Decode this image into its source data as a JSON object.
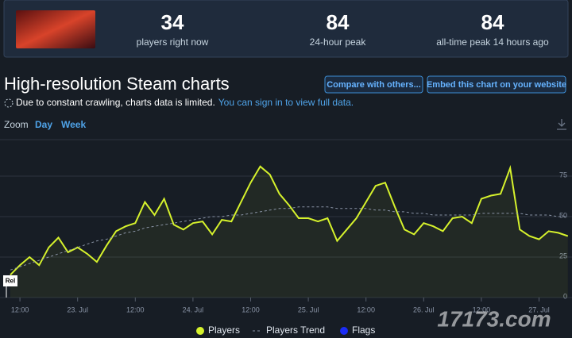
{
  "header": {
    "stats": [
      {
        "value": 34,
        "label": "players right now"
      },
      {
        "value": 84,
        "label": "24-hour peak"
      },
      {
        "value": 84,
        "label": "all-time peak 14 hours ago"
      }
    ]
  },
  "title": "High-resolution Steam charts",
  "buttons": [
    "Compare with others...",
    "Embed this chart on your website"
  ],
  "notice": {
    "text": "Due to constant crawling, charts data is limited.",
    "link": "You can sign in to view full data."
  },
  "zoom": {
    "label": "Zoom",
    "options": [
      "Day",
      "Week"
    ]
  },
  "watermark": "17173.com",
  "chart_data": {
    "type": "line",
    "categories": [
      null,
      "12:00",
      null,
      null,
      null,
      null,
      null,
      "23. Jul",
      null,
      null,
      null,
      null,
      null,
      "12:00",
      null,
      null,
      null,
      null,
      null,
      "24. Jul",
      null,
      null,
      null,
      null,
      null,
      "12:00",
      null,
      null,
      null,
      null,
      null,
      "25. Jul",
      null,
      null,
      null,
      null,
      null,
      "12:00",
      null,
      null,
      null,
      null,
      null,
      "26. Jul",
      null,
      null,
      null,
      null,
      null,
      "12:00",
      null,
      null,
      null,
      null,
      null,
      "27. Jul",
      null,
      null,
      null
    ],
    "series": [
      {
        "name": "Players",
        "color": "#d6f22c",
        "values": [
          14,
          20,
          25,
          20,
          31,
          37,
          28,
          31,
          27,
          22,
          32,
          41,
          44,
          46,
          59,
          51,
          61,
          45,
          42,
          46,
          47,
          39,
          48,
          47,
          59,
          71,
          81,
          76,
          64,
          57,
          49,
          49,
          47,
          49,
          35,
          42,
          49,
          59,
          69,
          71,
          56,
          42,
          39,
          46,
          44,
          41,
          49,
          50,
          46,
          61,
          63,
          64,
          80,
          42,
          38,
          36,
          41,
          40,
          38
        ]
      },
      {
        "name": "Players Trend",
        "color": "#8a94a6",
        "values": [
          17,
          19,
          21,
          23,
          25,
          27,
          29,
          31,
          33,
          35,
          36,
          38,
          40,
          41,
          43,
          44,
          45,
          46,
          47,
          48,
          49,
          50,
          50,
          51,
          51,
          52,
          53,
          54,
          55,
          55,
          56,
          56,
          56,
          56,
          55,
          55,
          55,
          55,
          54,
          54,
          53,
          53,
          52,
          52,
          51,
          51,
          51,
          51,
          51,
          52,
          52,
          52,
          52,
          52,
          51,
          51,
          51,
          50,
          50
        ]
      }
    ],
    "flags": {
      "name": "Flags",
      "color": "#1b2cf5",
      "labels": [
        "Rel"
      ]
    },
    "ylim": [
      0,
      100
    ],
    "yticks": [
      0,
      25,
      50,
      75
    ],
    "grid": true
  }
}
